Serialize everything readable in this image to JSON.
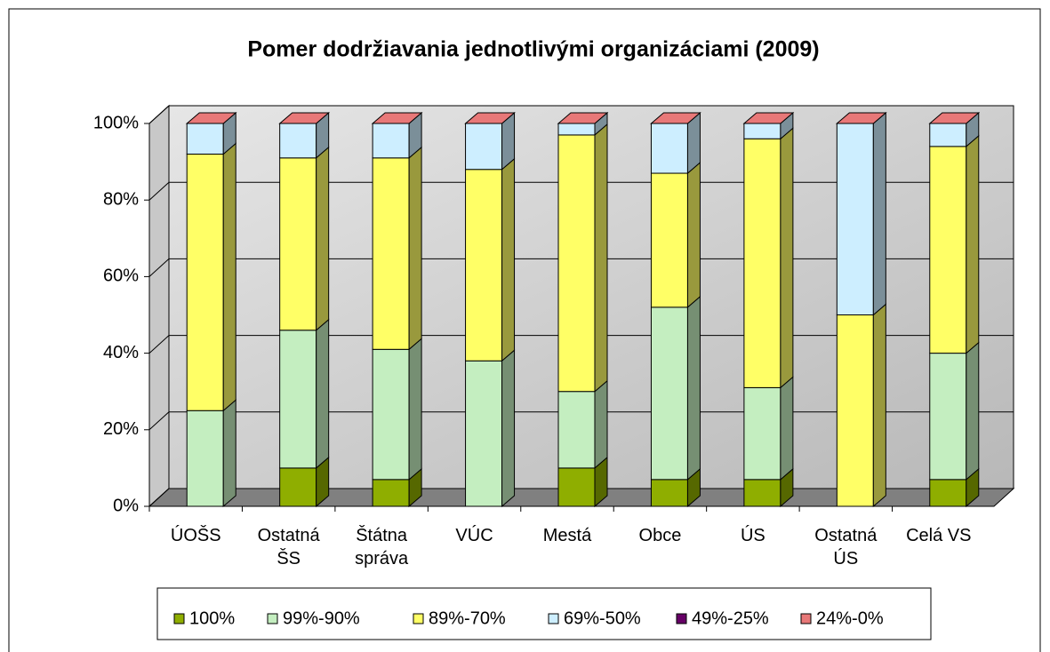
{
  "chart_data": {
    "type": "bar3d_stacked",
    "title": "Pomer dodržiavania jednotlivými organizáciami (2009)",
    "categories": [
      "ÚOŠS",
      "Ostatná ŠS",
      "Štátna správa",
      "VÚC",
      "Mestá",
      "Obce",
      "ÚS",
      "Ostatná ÚS",
      "Celá VS"
    ],
    "series": [
      {
        "name": "100%",
        "color": "#8fae00",
        "values": [
          0,
          10,
          7,
          0,
          10,
          7,
          7,
          0,
          7
        ]
      },
      {
        "name": "99%-90%",
        "color": "#c4eec0",
        "values": [
          25,
          36,
          34,
          38,
          20,
          45,
          24,
          0,
          33
        ]
      },
      {
        "name": "89%-70%",
        "color": "#ffff66",
        "values": [
          67,
          45,
          50,
          50,
          67,
          35,
          65,
          50,
          54
        ]
      },
      {
        "name": "69%-50%",
        "color": "#cdeeff",
        "values": [
          8,
          9,
          9,
          12,
          3,
          13,
          4,
          50,
          6
        ]
      },
      {
        "name": "49%-25%",
        "color": "#660066",
        "values": [
          0,
          0,
          0,
          0,
          0,
          0,
          0,
          0,
          0
        ]
      },
      {
        "name": "24%-0%",
        "color": "#e87878",
        "values": [
          0,
          0,
          0,
          0,
          0,
          0,
          0,
          0,
          0
        ]
      }
    ],
    "ylim": [
      0,
      100
    ],
    "yticks": [
      {
        "value": 0,
        "label": "0%"
      },
      {
        "value": 20,
        "label": "20%"
      },
      {
        "value": 40,
        "label": "40%"
      },
      {
        "value": 60,
        "label": "60%"
      },
      {
        "value": 80,
        "label": "80%"
      },
      {
        "value": 100,
        "label": "100%"
      }
    ],
    "grid": true
  }
}
